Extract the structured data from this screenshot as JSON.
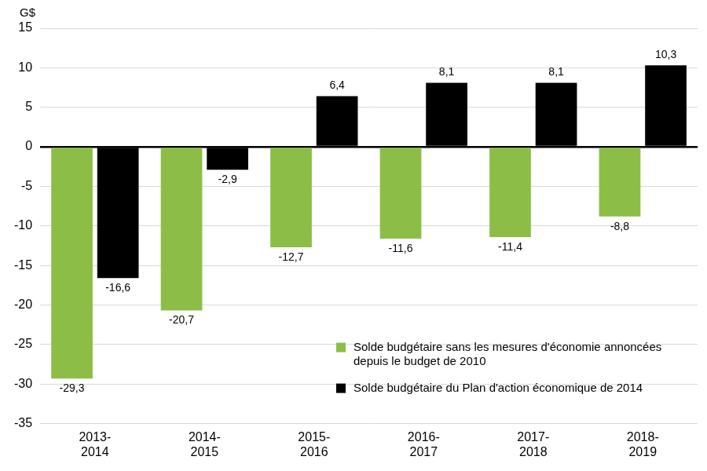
{
  "chart_data": {
    "type": "bar",
    "y_label": "G$",
    "categories": [
      "2013-2014",
      "2014-2015",
      "2015-2016",
      "2016-2017",
      "2017-2018",
      "2018-2019"
    ],
    "series": [
      {
        "name": "Solde budgétaire sans les mesures d'économie annoncées depuis le budget de 2010",
        "color": "#8cbe47",
        "values": [
          -29.3,
          -20.7,
          -12.7,
          -11.6,
          -11.4,
          -8.8
        ],
        "value_labels": [
          "-29,3",
          "-20,7",
          "-12,7",
          "-11,6",
          "-11,4",
          "-8,8"
        ]
      },
      {
        "name": "Solde budgétaire du Plan d'action économique de 2014",
        "color": "#000000",
        "values": [
          -16.6,
          -2.9,
          6.4,
          8.1,
          8.1,
          10.3
        ],
        "value_labels": [
          "-16,6",
          "-2,9",
          "6,4",
          "8,1",
          "8,1",
          "10,3"
        ]
      }
    ],
    "ylim": [
      -35,
      15
    ],
    "yticks": [
      -35,
      -30,
      -25,
      -20,
      -15,
      -10,
      -5,
      0,
      5,
      10,
      15
    ],
    "grid": true,
    "legend": "lower right",
    "data_labels": true
  }
}
